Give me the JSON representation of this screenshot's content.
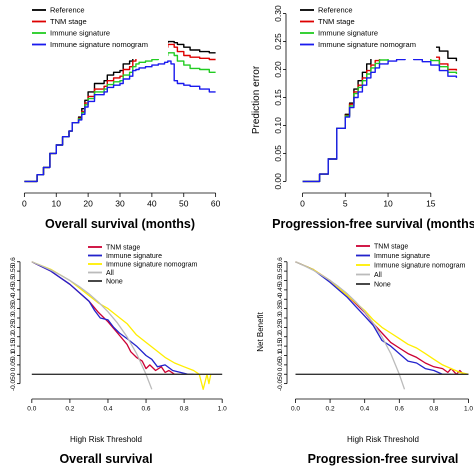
{
  "chart_data": [
    {
      "id": "tl",
      "type": "line",
      "step": true,
      "xlabel": "Overall survival (months)",
      "ylabel": "",
      "xlim": [
        -2,
        62
      ],
      "ylim": [
        -0.01,
        0.31
      ],
      "xticks": [
        0,
        10,
        20,
        30,
        40,
        50,
        60
      ],
      "xtick_labels": [
        "0",
        "10",
        "20",
        "30",
        "40",
        "50",
        "60"
      ],
      "yticks": [],
      "ytick_labels": [],
      "legend_position": "top-left",
      "series": [
        {
          "name": "Reference",
          "color": "#000000",
          "x": [
            0,
            4,
            6,
            8,
            10,
            12,
            14,
            15,
            17,
            18,
            19,
            20,
            22,
            25,
            26,
            28,
            30,
            31,
            33,
            34,
            35,
            36,
            38,
            40,
            42,
            44,
            45,
            47,
            48,
            50,
            52,
            55,
            58,
            60
          ],
          "y": [
            0.0,
            0.012,
            0.025,
            0.05,
            0.065,
            0.08,
            0.09,
            0.105,
            0.115,
            0.13,
            0.145,
            0.16,
            0.175,
            0.18,
            0.19,
            0.195,
            0.198,
            0.21,
            0.215,
            0.225,
            0.23,
            0.235,
            0.238,
            0.24,
            0.245,
            0.248,
            0.25,
            0.248,
            0.245,
            0.24,
            0.235,
            0.232,
            0.23,
            0.23
          ]
        },
        {
          "name": "TNM stage",
          "color": "#dd0000",
          "x": [
            0,
            4,
            6,
            8,
            10,
            12,
            14,
            15,
            17,
            18,
            19,
            20,
            22,
            25,
            26,
            28,
            30,
            31,
            33,
            34,
            35,
            36,
            38,
            40,
            42,
            44,
            45,
            47,
            48,
            50,
            52,
            55,
            58,
            60
          ],
          "y": [
            0.0,
            0.012,
            0.025,
            0.05,
            0.065,
            0.08,
            0.09,
            0.105,
            0.113,
            0.125,
            0.14,
            0.152,
            0.165,
            0.17,
            0.18,
            0.185,
            0.188,
            0.2,
            0.205,
            0.215,
            0.22,
            0.225,
            0.228,
            0.232,
            0.236,
            0.24,
            0.245,
            0.24,
            0.232,
            0.225,
            0.222,
            0.22,
            0.218,
            0.218
          ]
        },
        {
          "name": "Immune signature",
          "color": "#22cc22",
          "x": [
            0,
            4,
            6,
            8,
            10,
            12,
            14,
            15,
            17,
            18,
            19,
            20,
            22,
            25,
            26,
            28,
            30,
            31,
            33,
            34,
            35,
            36,
            38,
            40,
            42,
            44,
            45,
            47,
            48,
            50,
            52,
            55,
            58,
            60
          ],
          "y": [
            0.0,
            0.012,
            0.025,
            0.05,
            0.065,
            0.08,
            0.09,
            0.105,
            0.112,
            0.123,
            0.137,
            0.148,
            0.16,
            0.165,
            0.173,
            0.178,
            0.18,
            0.19,
            0.195,
            0.205,
            0.21,
            0.213,
            0.215,
            0.218,
            0.222,
            0.225,
            0.23,
            0.225,
            0.215,
            0.208,
            0.202,
            0.2,
            0.195,
            0.195
          ]
        },
        {
          "name": "Immune signature nomogram",
          "color": "#1a1aee",
          "x": [
            0,
            4,
            6,
            8,
            10,
            12,
            14,
            15,
            17,
            18,
            19,
            20,
            22,
            25,
            26,
            28,
            30,
            31,
            33,
            34,
            35,
            36,
            38,
            40,
            42,
            44,
            45,
            46,
            47,
            48,
            50,
            52,
            55,
            58,
            60
          ],
          "y": [
            0.0,
            0.012,
            0.025,
            0.05,
            0.065,
            0.08,
            0.09,
            0.105,
            0.11,
            0.12,
            0.133,
            0.143,
            0.155,
            0.16,
            0.168,
            0.172,
            0.175,
            0.183,
            0.188,
            0.198,
            0.2,
            0.203,
            0.205,
            0.208,
            0.21,
            0.213,
            0.215,
            0.21,
            0.18,
            0.175,
            0.172,
            0.17,
            0.165,
            0.16,
            0.16
          ]
        }
      ]
    },
    {
      "id": "tr",
      "type": "line",
      "step": true,
      "xlabel": "Progression-free survival (months)",
      "ylabel": "Prediction error",
      "xlim": [
        -1,
        19
      ],
      "ylim": [
        -0.01,
        0.31
      ],
      "xticks": [
        0,
        5,
        10,
        15
      ],
      "xtick_labels": [
        "0",
        "5",
        "10",
        "15"
      ],
      "yticks": [
        0.0,
        0.05,
        0.1,
        0.15,
        0.2,
        0.25,
        0.3
      ],
      "ytick_labels": [
        "0.00",
        "0.05",
        "0.10",
        "0.15",
        "0.20",
        "0.25",
        "0.30"
      ],
      "legend_position": "top-left",
      "series": [
        {
          "name": "Reference",
          "color": "#000000",
          "x": [
            0,
            2,
            3,
            4,
            5,
            5.5,
            6,
            6.5,
            7,
            7.5,
            8,
            8.5,
            9,
            10,
            11,
            12,
            13,
            14,
            15,
            16,
            17,
            18
          ],
          "y": [
            0.0,
            0.013,
            0.04,
            0.095,
            0.12,
            0.14,
            0.165,
            0.18,
            0.195,
            0.21,
            0.222,
            0.232,
            0.24,
            0.245,
            0.248,
            0.25,
            0.248,
            0.245,
            0.24,
            0.233,
            0.22,
            0.215
          ]
        },
        {
          "name": "TNM stage",
          "color": "#dd0000",
          "x": [
            0,
            2,
            3,
            4,
            5,
            5.5,
            6,
            6.5,
            7,
            7.5,
            8,
            8.5,
            9,
            10,
            11,
            12,
            13,
            14,
            15,
            16,
            17,
            18
          ],
          "y": [
            0.0,
            0.013,
            0.04,
            0.095,
            0.118,
            0.138,
            0.16,
            0.172,
            0.185,
            0.198,
            0.208,
            0.216,
            0.222,
            0.227,
            0.23,
            0.232,
            0.231,
            0.228,
            0.222,
            0.21,
            0.2,
            0.198
          ]
        },
        {
          "name": "Immune signature",
          "color": "#22cc22",
          "x": [
            0,
            2,
            3,
            4,
            5,
            5.5,
            6,
            6.5,
            7,
            7.5,
            8,
            8.5,
            9,
            10,
            11,
            12,
            13,
            14,
            15,
            16,
            17,
            18
          ],
          "y": [
            0.0,
            0.013,
            0.04,
            0.095,
            0.117,
            0.135,
            0.157,
            0.168,
            0.18,
            0.192,
            0.203,
            0.211,
            0.217,
            0.222,
            0.225,
            0.227,
            0.226,
            0.223,
            0.216,
            0.205,
            0.195,
            0.192
          ]
        },
        {
          "name": "Immune signature nomogram",
          "color": "#1a1aee",
          "x": [
            0,
            2,
            3,
            4,
            5,
            5.5,
            6,
            6.5,
            7,
            7.5,
            8,
            8.5,
            9,
            10,
            11,
            12,
            13,
            14,
            15,
            16,
            17,
            18
          ],
          "y": [
            0.0,
            0.013,
            0.04,
            0.095,
            0.115,
            0.132,
            0.15,
            0.16,
            0.172,
            0.185,
            0.195,
            0.203,
            0.21,
            0.215,
            0.218,
            0.22,
            0.218,
            0.214,
            0.208,
            0.198,
            0.188,
            0.185
          ]
        }
      ]
    },
    {
      "id": "bl",
      "type": "line",
      "step": false,
      "title": "Overall survival",
      "xlabel": "High Risk Threshold",
      "ylabel": "",
      "xlim": [
        -0.02,
        1.02
      ],
      "ylim": [
        -0.1,
        0.62
      ],
      "xticks": [
        0.0,
        0.2,
        0.4,
        0.6,
        0.8,
        1.0
      ],
      "xtick_labels": [
        "0.0",
        "0.2",
        "0.4",
        "0.6",
        "0.8",
        "1.0"
      ],
      "yticks": [
        -0.05,
        0.0,
        0.05,
        0.1,
        0.15,
        0.2,
        0.25,
        0.3,
        0.35,
        0.4,
        0.45,
        0.5,
        0.55,
        0.6
      ],
      "ytick_labels": [
        "-0.05",
        "0",
        "0.05",
        "0.1",
        "0.15",
        "0.2",
        "0.25",
        "0.3",
        "0.35",
        "0.4",
        "0.45",
        "0.5",
        "0.55",
        "0.6"
      ],
      "legend_position": "top-right",
      "series": [
        {
          "name": "TNM stage",
          "color": "#cc0033",
          "x": [
            0.0,
            0.1,
            0.2,
            0.3,
            0.35,
            0.4,
            0.45,
            0.5,
            0.52,
            0.55,
            0.58,
            0.6,
            0.62,
            0.65,
            0.68,
            0.7,
            0.72,
            0.75,
            0.78
          ],
          "y": [
            0.6,
            0.55,
            0.48,
            0.39,
            0.33,
            0.28,
            0.22,
            0.16,
            0.12,
            0.09,
            0.07,
            0.03,
            0.05,
            0.02,
            0.04,
            0.01,
            0.02,
            0.0,
            0.0
          ]
        },
        {
          "name": "Immune signature",
          "color": "#2222cc",
          "x": [
            0.0,
            0.1,
            0.2,
            0.3,
            0.33,
            0.36,
            0.4,
            0.43,
            0.46,
            0.5,
            0.55,
            0.6,
            0.63,
            0.66,
            0.7,
            0.74,
            0.78,
            0.82,
            0.85
          ],
          "y": [
            0.6,
            0.55,
            0.48,
            0.39,
            0.34,
            0.3,
            0.29,
            0.25,
            0.22,
            0.19,
            0.15,
            0.1,
            0.08,
            0.04,
            0.05,
            0.02,
            0.01,
            0.0,
            0.0
          ]
        },
        {
          "name": "Immune signature nomogram",
          "color": "#ffee00",
          "x": [
            0.0,
            0.1,
            0.2,
            0.3,
            0.35,
            0.4,
            0.45,
            0.5,
            0.55,
            0.6,
            0.65,
            0.7,
            0.75,
            0.8,
            0.85,
            0.88,
            0.9,
            0.92,
            0.93,
            0.94
          ],
          "y": [
            0.6,
            0.56,
            0.5,
            0.42,
            0.38,
            0.35,
            0.31,
            0.27,
            0.21,
            0.17,
            0.13,
            0.09,
            0.06,
            0.04,
            0.02,
            0.0,
            -0.08,
            0.0,
            -0.05,
            0.0
          ]
        },
        {
          "name": "All",
          "color": "#bbbbbb",
          "x": [
            0.0,
            0.05,
            0.1,
            0.15,
            0.2,
            0.25,
            0.3,
            0.35,
            0.4,
            0.45,
            0.5,
            0.55,
            0.6,
            0.63
          ],
          "y": [
            0.6,
            0.579,
            0.556,
            0.529,
            0.5,
            0.467,
            0.429,
            0.385,
            0.333,
            0.273,
            0.2,
            0.111,
            0.0,
            -0.08
          ]
        },
        {
          "name": "None",
          "color": "#333333",
          "x": [
            0.0,
            1.0
          ],
          "y": [
            0.0,
            0.0
          ]
        }
      ]
    },
    {
      "id": "br",
      "type": "line",
      "step": false,
      "title": "Progression-free survival",
      "xlabel": "High Risk Threshold",
      "ylabel": "Net Benefit",
      "xlim": [
        -0.02,
        1.02
      ],
      "ylim": [
        -0.1,
        0.62
      ],
      "xticks": [
        0.0,
        0.2,
        0.4,
        0.6,
        0.8,
        1.0
      ],
      "xtick_labels": [
        "0.0",
        "0.2",
        "0.4",
        "0.6",
        "0.8",
        "1.0"
      ],
      "yticks": [
        -0.05,
        0.0,
        0.05,
        0.1,
        0.15,
        0.2,
        0.25,
        0.3,
        0.35,
        0.4,
        0.45,
        0.5,
        0.55,
        0.6
      ],
      "ytick_labels": [
        "-0.05",
        "0",
        "0.05",
        "0.1",
        "0.15",
        "0.2",
        "0.25",
        "0.3",
        "0.35",
        "0.4",
        "0.45",
        "0.5",
        "0.55",
        "0.6"
      ],
      "legend_position": "top-right",
      "series": [
        {
          "name": "TNM stage",
          "color": "#cc0033",
          "x": [
            0.0,
            0.1,
            0.2,
            0.3,
            0.4,
            0.45,
            0.5,
            0.55,
            0.6,
            0.65,
            0.7,
            0.75,
            0.8,
            0.85,
            0.88,
            0.9,
            0.93,
            0.95,
            0.97,
            1.0
          ],
          "y": [
            0.6,
            0.56,
            0.5,
            0.42,
            0.33,
            0.27,
            0.22,
            0.17,
            0.14,
            0.11,
            0.09,
            0.06,
            0.04,
            0.03,
            0.01,
            0.03,
            0.0,
            0.02,
            0.0,
            0.0
          ]
        },
        {
          "name": "Immune signature",
          "color": "#2222cc",
          "x": [
            0.0,
            0.1,
            0.2,
            0.3,
            0.35,
            0.4,
            0.45,
            0.5,
            0.55,
            0.6,
            0.65,
            0.7,
            0.75,
            0.8,
            0.85,
            0.9
          ],
          "y": [
            0.6,
            0.56,
            0.49,
            0.41,
            0.36,
            0.31,
            0.26,
            0.18,
            0.15,
            0.11,
            0.07,
            0.06,
            0.03,
            0.02,
            0.0,
            0.0
          ]
        },
        {
          "name": "Immune signature nomogram",
          "color": "#ffee00",
          "x": [
            0.0,
            0.1,
            0.2,
            0.3,
            0.4,
            0.45,
            0.5,
            0.55,
            0.6,
            0.65,
            0.7,
            0.75,
            0.8,
            0.85,
            0.9,
            0.95,
            1.0
          ],
          "y": [
            0.6,
            0.56,
            0.5,
            0.42,
            0.34,
            0.29,
            0.25,
            0.22,
            0.19,
            0.16,
            0.14,
            0.11,
            0.08,
            0.05,
            0.03,
            0.01,
            0.0
          ]
        },
        {
          "name": "All",
          "color": "#bbbbbb",
          "x": [
            0.0,
            0.05,
            0.1,
            0.15,
            0.2,
            0.25,
            0.3,
            0.35,
            0.4,
            0.45,
            0.5,
            0.55,
            0.6,
            0.63
          ],
          "y": [
            0.6,
            0.579,
            0.556,
            0.529,
            0.5,
            0.467,
            0.429,
            0.385,
            0.333,
            0.273,
            0.2,
            0.111,
            0.0,
            -0.08
          ]
        },
        {
          "name": "None",
          "color": "#333333",
          "x": [
            0.0,
            1.0
          ],
          "y": [
            0.0,
            0.0
          ]
        }
      ]
    }
  ]
}
